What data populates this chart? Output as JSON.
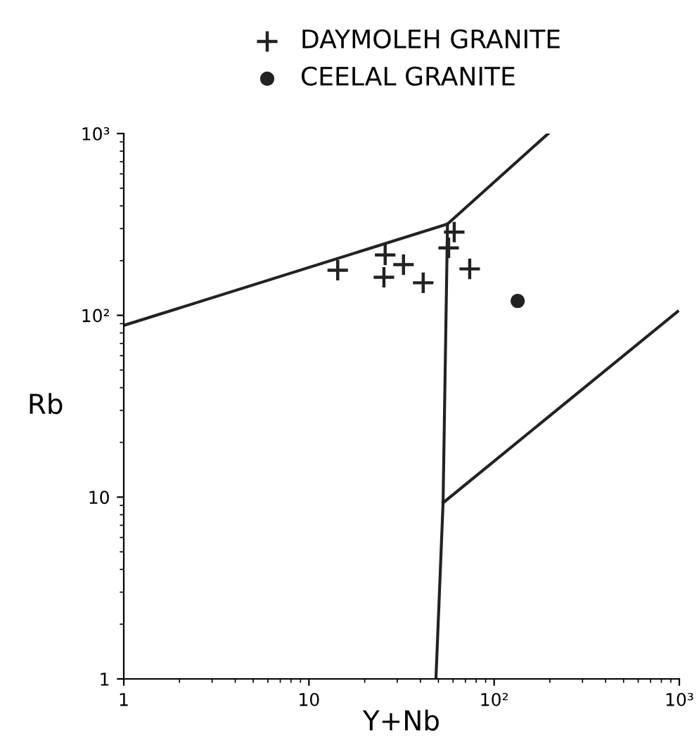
{
  "chart_data": {
    "type": "scatter",
    "xlabel": "Y+Nb",
    "ylabel": "Rb",
    "log": "xy",
    "xlim": [
      1,
      1000
    ],
    "ylim": [
      1,
      1000
    ],
    "xticks": [
      1,
      10,
      {
        "value": 100,
        "label": "10²"
      },
      {
        "value": 1000,
        "label": "10³"
      }
    ],
    "yticks": [
      1,
      10,
      {
        "value": 100,
        "label": "10²"
      },
      {
        "value": 1000,
        "label": "10³"
      }
    ],
    "grid": false,
    "legend": "top",
    "series": [
      {
        "name": "DAYMOLEH GRANITE",
        "marker": "cross",
        "color": "#222222",
        "x": [
          14.3,
          25.8,
          25.4,
          32.4,
          41.4,
          60.9,
          56.8,
          73.8
        ],
        "values": [
          177,
          215,
          162,
          190,
          151,
          287,
          235,
          180
        ]
      },
      {
        "name": "CEELAL GRANITE",
        "marker": "circle",
        "color": "#222222",
        "x": [
          134
        ],
        "values": [
          120
        ]
      },
      {
        "type": "line",
        "color": "#222222",
        "x": [
          1,
          56,
          196
        ],
        "values": [
          88,
          318,
          1000
        ]
      },
      {
        "type": "line",
        "color": "#222222",
        "x": [
          56,
          53,
          48.5
        ],
        "values": [
          318,
          9.3,
          1
        ]
      },
      {
        "type": "line",
        "color": "#222222",
        "x": [
          53,
          980
        ],
        "values": [
          9.3,
          105
        ]
      }
    ]
  }
}
